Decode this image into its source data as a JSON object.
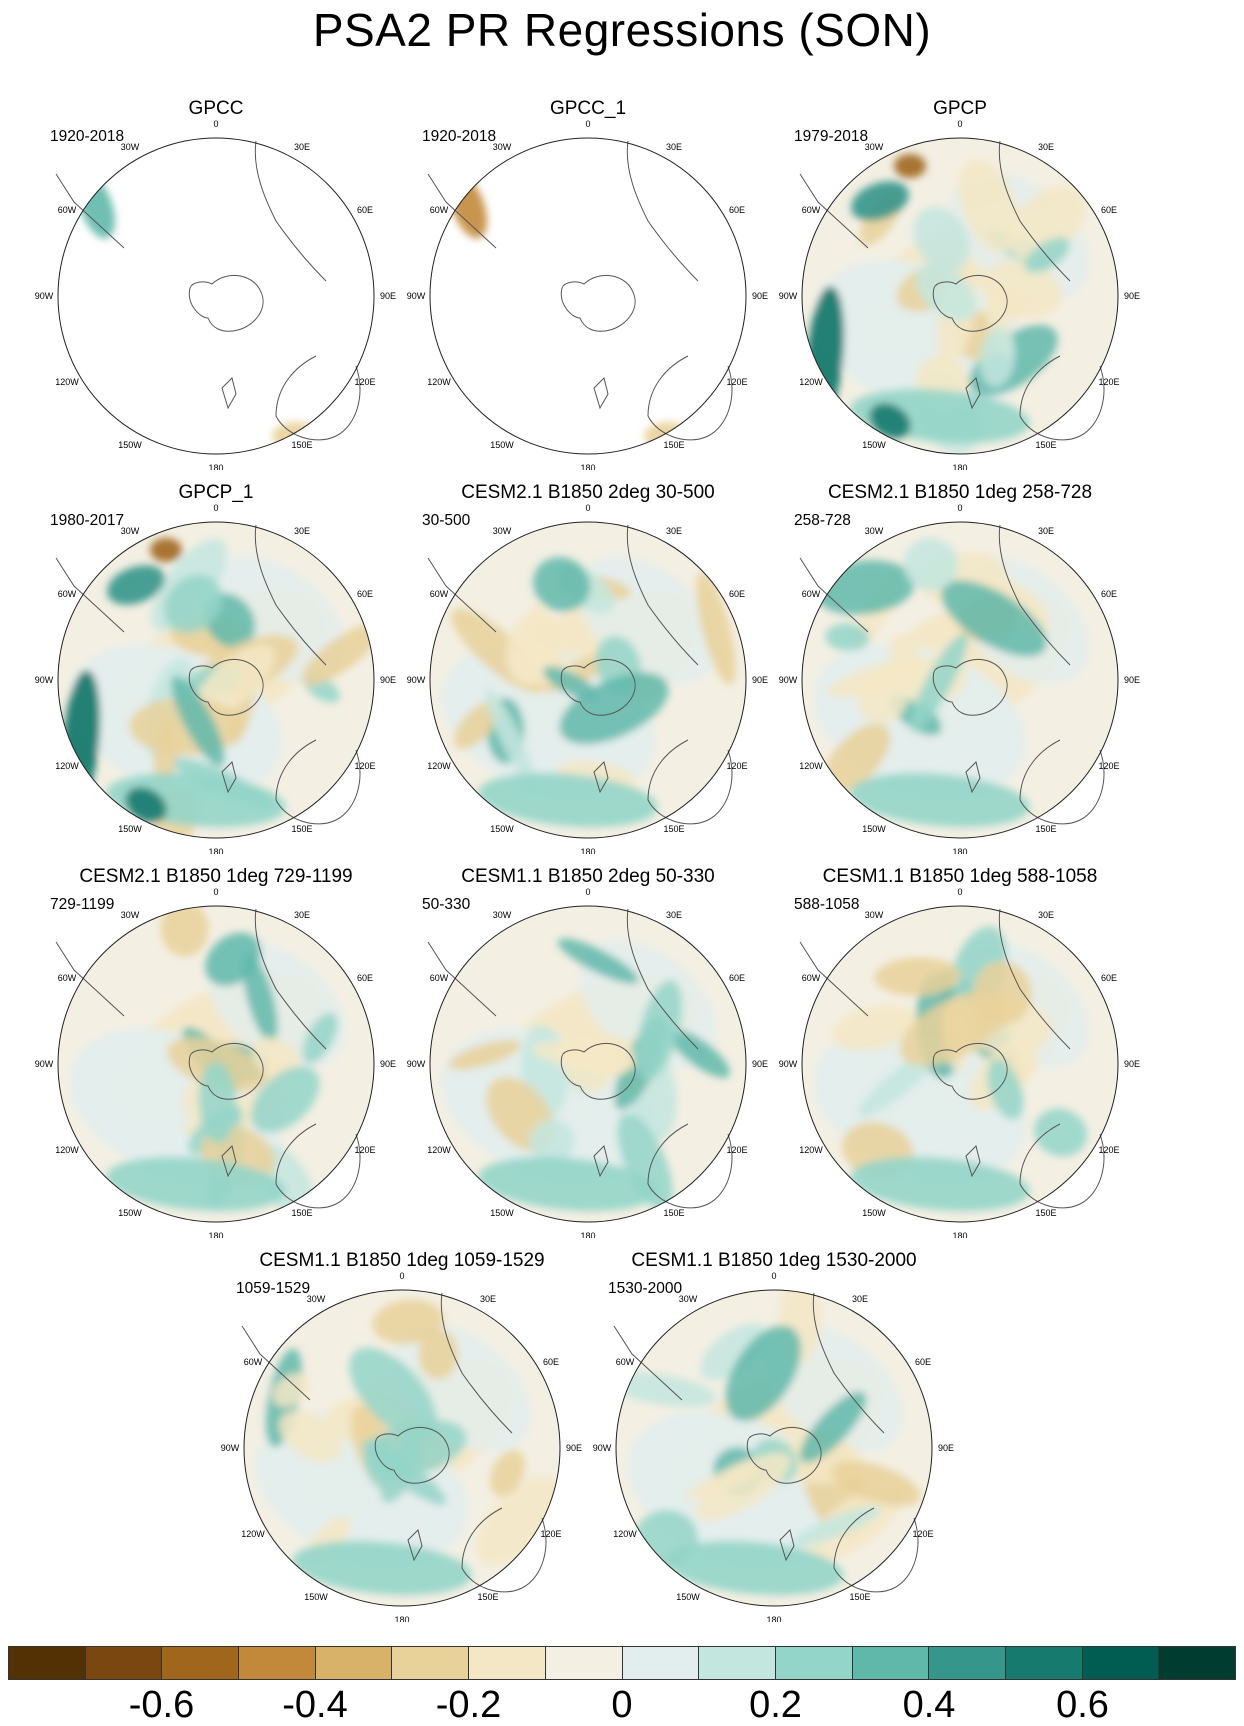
{
  "title": "PSA2 PR Regressions (SON)",
  "map_tick_labels": [
    "0",
    "30E",
    "60E",
    "90E",
    "120E",
    "150E",
    "180",
    "150W",
    "120W",
    "90W",
    "60W",
    "30W"
  ],
  "panels": [
    {
      "title": "GPCC",
      "period": "1920-2018",
      "coverage": "land"
    },
    {
      "title": "GPCC_1",
      "period": "1920-2018",
      "coverage": "land"
    },
    {
      "title": "GPCP",
      "period": "1979-2018",
      "coverage": "global"
    },
    {
      "title": "GPCP_1",
      "period": "1980-2017",
      "coverage": "global"
    },
    {
      "title": "CESM2.1 B1850 2deg 30-500",
      "period": "30-500",
      "coverage": "global"
    },
    {
      "title": "CESM2.1 B1850 1deg 258-728",
      "period": "258-728",
      "coverage": "global"
    },
    {
      "title": "CESM2.1 B1850 1deg 729-1199",
      "period": "729-1199",
      "coverage": "global"
    },
    {
      "title": "CESM1.1 B1850 2deg 50-330",
      "period": "50-330",
      "coverage": "global"
    },
    {
      "title": "CESM1.1 B1850 1deg 588-1058",
      "period": "588-1058",
      "coverage": "global"
    },
    {
      "title": "CESM1.1 B1850 1deg 1059-1529",
      "period": "1059-1529",
      "coverage": "global"
    },
    {
      "title": "CESM1.1 B1850 1deg 1530-2000",
      "period": "1530-2000",
      "coverage": "global"
    }
  ],
  "colorbar": {
    "colors": [
      "#543005",
      "#7b4710",
      "#a0661c",
      "#c3893a",
      "#d9b26a",
      "#e9d19a",
      "#f4e7c5",
      "#f3efe3",
      "#e2eeee",
      "#c3e6df",
      "#94d5c9",
      "#60b8ab",
      "#35968c",
      "#167a6e",
      "#015d52",
      "#003c30"
    ],
    "labels": [
      "-0.6",
      "-0.4",
      "-0.2",
      "0",
      "0.2",
      "0.4",
      "0.6"
    ]
  }
}
